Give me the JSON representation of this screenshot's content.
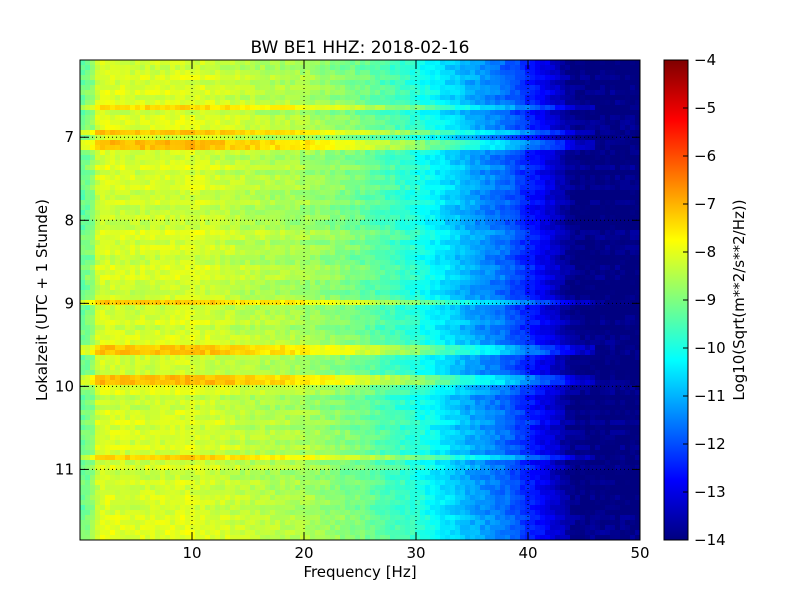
{
  "chart_data": {
    "type": "heatmap",
    "title": "BW BE1 HHZ: 2018-02-16",
    "xlabel": "Frequency [Hz]",
    "ylabel": "Lokalzeit (UTC + 1 Stunde)",
    "xlim": [
      0,
      50
    ],
    "ylim": [
      6.07,
      11.85
    ],
    "y_inverted": true,
    "grid": true,
    "x_ticks": [
      10,
      20,
      30,
      40,
      50
    ],
    "x_tick_labels": [
      "10",
      "20",
      "30",
      "40",
      "50"
    ],
    "y_ticks": [
      7,
      8,
      9,
      10,
      11
    ],
    "y_tick_labels": [
      "7",
      "8",
      "9",
      "10",
      "11"
    ],
    "colormap": "jet",
    "colorbar": {
      "label": "Log10(Sqrt(m**2/s**2/Hz))",
      "min": -14,
      "max": -4,
      "ticks": [
        -4,
        -5,
        -6,
        -7,
        -8,
        -9,
        -10,
        -11,
        -12,
        -13,
        -14
      ],
      "tick_labels": [
        "−4",
        "−5",
        "−6",
        "−7",
        "−8",
        "−9",
        "−10",
        "−11",
        "−12",
        "−13",
        "−14"
      ]
    },
    "spectrum_profile": {
      "frequencies_hz": [
        0,
        2,
        5,
        10,
        15,
        20,
        25,
        30,
        33,
        35,
        38,
        40,
        42,
        44,
        45,
        50
      ],
      "log10_amplitude": [
        -8.8,
        -8.1,
        -8.2,
        -8.1,
        -8.4,
        -8.6,
        -9.1,
        -9.9,
        -10.6,
        -11.1,
        -11.7,
        -12.4,
        -13.1,
        -13.9,
        -14.0,
        -14.0
      ]
    },
    "elevated_bands_hours": [
      6.65,
      6.93,
      7.1,
      8.98,
      9.55,
      9.92,
      10.85
    ]
  }
}
